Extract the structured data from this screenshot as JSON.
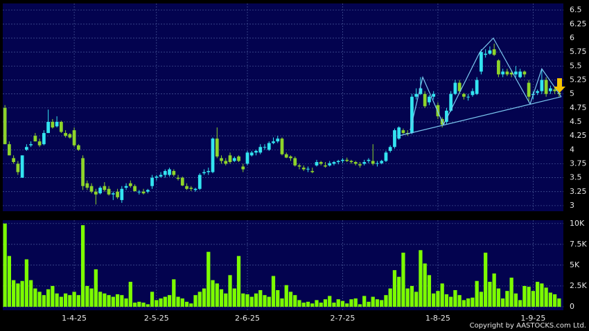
{
  "chart_data": {
    "type": "candlestick",
    "open": [
      4.75,
      4.1,
      3.85,
      3.75,
      3.5,
      4.0,
      4.08,
      4.25,
      4.15,
      4.1,
      4.3,
      4.5,
      4.42,
      4.5,
      4.3,
      4.28,
      4.35,
      4.08,
      3.85,
      3.4,
      3.35,
      3.25,
      3.22,
      3.35,
      3.3,
      3.2,
      3.25,
      3.1,
      3.32,
      3.4,
      3.35,
      3.24,
      3.25,
      3.25,
      3.35,
      3.5,
      3.52,
      3.55,
      3.55,
      3.62,
      3.5,
      3.5,
      3.35,
      3.32,
      3.28,
      3.3,
      3.58,
      3.6,
      3.6,
      4.2,
      3.85,
      3.8,
      3.9,
      3.8,
      3.88,
      3.7,
      3.75,
      3.9,
      3.95,
      3.95,
      4.05,
      4.0,
      4.12,
      4.15,
      4.2,
      3.92,
      3.88,
      3.85,
      3.72,
      3.68,
      3.65,
      3.62,
      3.72,
      3.78,
      3.72,
      3.72,
      3.75,
      3.78,
      3.8,
      3.82,
      3.8,
      3.78,
      3.74,
      3.75,
      3.8,
      3.8,
      3.75,
      3.76,
      3.8,
      3.98,
      4.05,
      4.2,
      4.35,
      4.3,
      4.3,
      4.95,
      5.0,
      5.0,
      4.85,
      4.95,
      4.8,
      4.55,
      4.5,
      4.7,
      5.0,
      5.2,
      5.0,
      4.95,
      4.98,
      5.0,
      5.4,
      5.7,
      5.72,
      5.8,
      5.6,
      5.35,
      5.4,
      5.38,
      5.35,
      5.3,
      5.4,
      5.2,
      4.98,
      5.02,
      5.05,
      5.25,
      5.05,
      5.08,
      5.02
    ],
    "high": [
      4.8,
      4.15,
      3.9,
      3.8,
      3.9,
      4.1,
      4.15,
      4.3,
      4.2,
      4.35,
      4.72,
      4.55,
      4.6,
      4.52,
      4.35,
      4.3,
      4.4,
      4.1,
      3.9,
      3.45,
      3.4,
      3.3,
      3.35,
      3.42,
      3.35,
      3.25,
      3.3,
      3.35,
      3.4,
      3.45,
      3.38,
      3.28,
      3.3,
      3.3,
      3.55,
      3.55,
      3.6,
      3.65,
      3.68,
      3.65,
      3.55,
      3.52,
      3.4,
      3.35,
      3.32,
      3.58,
      3.65,
      3.68,
      4.22,
      4.4,
      3.9,
      3.85,
      3.95,
      3.88,
      3.9,
      3.75,
      3.98,
      3.98,
      4.0,
      4.1,
      4.1,
      4.15,
      4.22,
      4.25,
      4.22,
      3.95,
      3.9,
      3.88,
      3.75,
      3.72,
      3.7,
      3.68,
      3.82,
      3.8,
      3.78,
      3.8,
      3.8,
      3.82,
      3.85,
      3.86,
      3.82,
      3.8,
      3.78,
      3.82,
      3.85,
      4.1,
      3.8,
      3.82,
      3.98,
      4.08,
      4.38,
      4.42,
      4.38,
      4.35,
      5.0,
      5.1,
      5.3,
      5.05,
      4.98,
      5.05,
      4.85,
      4.58,
      4.75,
      5.05,
      5.25,
      5.25,
      5.02,
      5.0,
      5.1,
      5.3,
      5.8,
      5.8,
      5.85,
      5.9,
      5.62,
      5.45,
      5.45,
      5.42,
      5.5,
      5.45,
      5.42,
      5.25,
      5.05,
      5.08,
      5.45,
      5.3,
      5.15,
      5.12,
      5.08
    ],
    "low": [
      4.1,
      3.9,
      3.75,
      3.55,
      3.5,
      3.98,
      4.05,
      4.15,
      4.05,
      4.08,
      4.3,
      4.38,
      4.4,
      4.3,
      4.22,
      4.2,
      4.05,
      3.98,
      3.28,
      3.28,
      3.22,
      3.02,
      3.2,
      3.25,
      3.18,
      3.1,
      3.12,
      3.05,
      3.28,
      3.32,
      3.25,
      3.2,
      3.2,
      3.22,
      3.3,
      3.45,
      3.5,
      3.5,
      3.52,
      3.52,
      3.45,
      3.35,
      3.28,
      3.26,
      3.25,
      3.28,
      3.55,
      3.55,
      3.58,
      3.85,
      3.75,
      3.72,
      3.75,
      3.78,
      3.78,
      3.6,
      3.72,
      3.88,
      3.9,
      3.92,
      4.0,
      3.98,
      4.1,
      4.12,
      3.9,
      3.85,
      3.8,
      3.7,
      3.65,
      3.62,
      3.6,
      3.58,
      3.7,
      3.72,
      3.68,
      3.7,
      3.72,
      3.74,
      3.76,
      3.78,
      3.75,
      3.72,
      3.68,
      3.72,
      3.76,
      3.72,
      3.7,
      3.74,
      3.78,
      3.95,
      4.02,
      4.18,
      4.28,
      4.25,
      4.28,
      4.9,
      4.98,
      4.75,
      4.8,
      4.9,
      4.55,
      4.4,
      4.45,
      4.68,
      4.98,
      5.0,
      4.9,
      4.88,
      4.95,
      4.98,
      5.35,
      5.65,
      5.7,
      5.68,
      5.3,
      5.3,
      5.32,
      5.3,
      5.3,
      5.28,
      5.3,
      4.85,
      4.9,
      4.98,
      5.0,
      4.95,
      5.0,
      5.0,
      4.95
    ],
    "close": [
      4.1,
      3.9,
      3.78,
      3.6,
      3.9,
      4.05,
      4.1,
      4.15,
      4.08,
      4.3,
      4.5,
      4.4,
      4.5,
      4.32,
      4.25,
      4.22,
      4.08,
      4.0,
      3.35,
      3.32,
      3.25,
      3.2,
      3.32,
      3.28,
      3.2,
      3.22,
      3.15,
      3.3,
      3.35,
      3.35,
      3.26,
      3.25,
      3.22,
      3.28,
      3.5,
      3.52,
      3.55,
      3.62,
      3.65,
      3.55,
      3.48,
      3.36,
      3.3,
      3.3,
      3.3,
      3.55,
      3.6,
      3.62,
      4.2,
      3.88,
      3.8,
      3.75,
      3.78,
      3.85,
      3.8,
      3.65,
      3.95,
      3.95,
      3.98,
      4.05,
      4.05,
      4.12,
      4.15,
      4.2,
      3.92,
      3.86,
      3.85,
      3.72,
      3.7,
      3.65,
      3.66,
      3.6,
      3.78,
      3.75,
      3.7,
      3.76,
      3.78,
      3.8,
      3.82,
      3.8,
      3.78,
      3.75,
      3.72,
      3.78,
      3.82,
      3.75,
      3.76,
      3.8,
      3.95,
      4.05,
      4.35,
      4.4,
      4.3,
      4.28,
      4.95,
      5.0,
      5.1,
      4.78,
      4.95,
      5.0,
      4.6,
      4.45,
      4.7,
      5.0,
      5.2,
      5.05,
      4.95,
      4.95,
      5.05,
      5.25,
      5.75,
      5.72,
      5.78,
      5.7,
      5.35,
      5.4,
      5.35,
      5.35,
      5.4,
      5.4,
      5.35,
      4.95,
      5.0,
      5.05,
      5.25,
      5.0,
      5.1,
      5.05,
      5.0
    ],
    "up_color": "#33e4f0",
    "down_color": "#8ed42a",
    "xlim": [
      -0.5,
      128.5
    ],
    "xticks": [
      {
        "value": 16,
        "label": "1-4-25"
      },
      {
        "value": 35,
        "label": "2-5-25"
      },
      {
        "value": 56,
        "label": "2-6-25"
      },
      {
        "value": 78,
        "label": "2-7-25"
      },
      {
        "value": 100,
        "label": "1-8-25"
      },
      {
        "value": 122,
        "label": "1-9-25"
      }
    ],
    "ylim": [
      2.9,
      6.62
    ],
    "yticks": [
      3,
      3.25,
      3.5,
      3.75,
      4,
      4.25,
      4.5,
      4.75,
      5,
      5.25,
      5.5,
      5.75,
      6,
      6.25,
      6.5
    ],
    "grid": true,
    "trend_lines": {
      "color": "#7cc8f0",
      "lines": [
        [
          [
            91,
            4.25
          ],
          [
            128.5,
            4.95
          ]
        ],
        [
          [
            93.6,
            4.35
          ],
          [
            96.5,
            5.3
          ],
          [
            101.3,
            4.45
          ],
          [
            109.7,
            5.75
          ],
          [
            112.8,
            6.0
          ],
          [
            121.3,
            4.82
          ],
          [
            124,
            5.45
          ],
          [
            128.5,
            4.95
          ]
        ]
      ]
    },
    "volume": {
      "color": "#7cfc00",
      "values": [
        10,
        6.1,
        3.2,
        2.8,
        3.1,
        5.7,
        3.2,
        2.2,
        1.8,
        1.4,
        2.1,
        2.5,
        1.6,
        1.2,
        1.6,
        1.4,
        1.8,
        1.4,
        9.8,
        2.5,
        2.2,
        4.5,
        1.8,
        1.6,
        1.4,
        1.2,
        1.5,
        1.4,
        1.0,
        3.0,
        0.5,
        0.6,
        0.5,
        0.3,
        1.8,
        0.8,
        1.0,
        1.2,
        1.4,
        3.3,
        1.2,
        1.0,
        0.6,
        0.4,
        1.4,
        1.8,
        2.2,
        6.6,
        3.2,
        2.8,
        2.1,
        1.6,
        3.8,
        2.2,
        6.1,
        1.6,
        1.5,
        1.2,
        1.6,
        2.0,
        1.4,
        1.2,
        3.7,
        2.0,
        1.0,
        2.6,
        1.8,
        1.4,
        0.8,
        0.5,
        0.6,
        0.4,
        0.8,
        0.5,
        0.9,
        1.3,
        0.5,
        0.9,
        0.7,
        0.4,
        0.9,
        1.0,
        0.3,
        1.3,
        0.6,
        1.2,
        0.9,
        0.8,
        1.4,
        2.2,
        4.4,
        3.6,
        6.5,
        2.2,
        2.5,
        1.8,
        6.8,
        5.2,
        3.8,
        1.6,
        1.9,
        2.8,
        1.5,
        1.2,
        2.0,
        1.4,
        0.8,
        1.0,
        1.1,
        3.1,
        1.8,
        6.5,
        3.0,
        4.0,
        2.2,
        1.0,
        1.9,
        3.5,
        1.6,
        0.8,
        2.5,
        2.4,
        1.9,
        3.0,
        2.8,
        2.3,
        1.7,
        1.5,
        1.0
      ],
      "ylim": [
        0,
        10.4
      ],
      "yticks": [
        0,
        {
          "value": 2.5,
          "label": "2.5K"
        },
        {
          "value": 5,
          "label": "5K"
        },
        {
          "value": 7.5,
          "label": "7.5K"
        },
        {
          "value": 10,
          "label": "10K"
        }
      ]
    },
    "copyright": "Copyright by AASTOCKS.com Ltd."
  }
}
